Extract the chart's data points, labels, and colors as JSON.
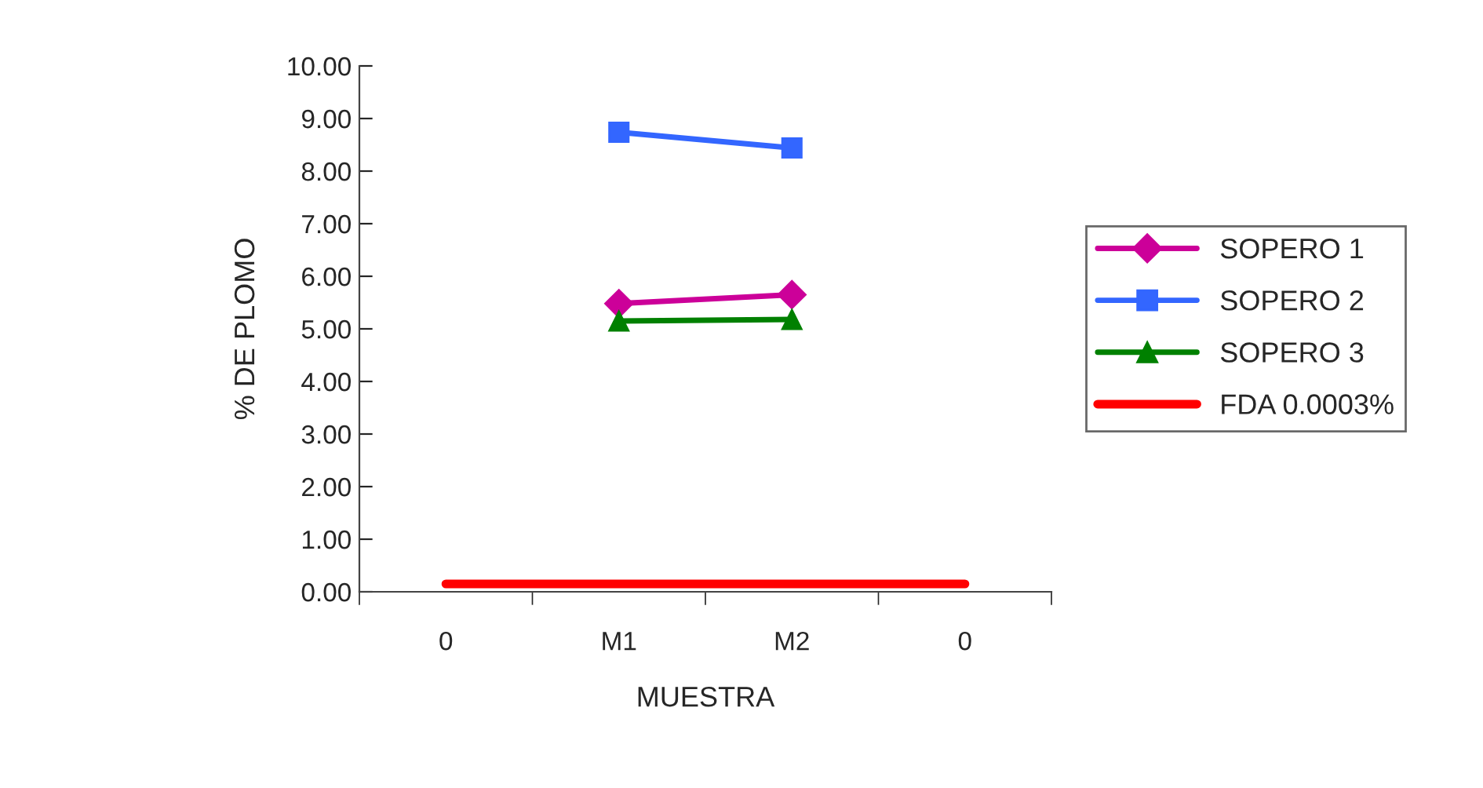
{
  "chart_data": {
    "type": "line",
    "xlabel": "MUESTRA",
    "ylabel": "% DE PLOMO",
    "categories": [
      "0",
      "M1",
      "M2",
      "0"
    ],
    "series": [
      {
        "name": "SOPERO 1",
        "color": "#cc0099",
        "marker": "diamond",
        "values": [
          null,
          5.48,
          5.65,
          null
        ]
      },
      {
        "name": "SOPERO 2",
        "color": "#3366ff",
        "marker": "square",
        "values": [
          null,
          8.74,
          8.44,
          null
        ]
      },
      {
        "name": "SOPERO 3",
        "color": "#008000",
        "marker": "triangle",
        "values": [
          null,
          5.15,
          5.18,
          null
        ]
      },
      {
        "name": "FDA 0.0003%",
        "color": "#ff0000",
        "marker": "none",
        "values": [
          0.15,
          0.15,
          0.15,
          0.15
        ]
      }
    ],
    "ylim": [
      0,
      10
    ],
    "yticks": [
      {
        "value": 0,
        "label": "0.00"
      },
      {
        "value": 1,
        "label": "1.00"
      },
      {
        "value": 2,
        "label": "2.00"
      },
      {
        "value": 3,
        "label": "3.00"
      },
      {
        "value": 4,
        "label": "4.00"
      },
      {
        "value": 5,
        "label": "5.00"
      },
      {
        "value": 6,
        "label": "6.00"
      },
      {
        "value": 7,
        "label": "7.00"
      },
      {
        "value": 8,
        "label": "8.00"
      },
      {
        "value": 9,
        "label": "9.00"
      },
      {
        "value": 10,
        "label": "10.00"
      }
    ],
    "grid": false,
    "legend": "right"
  }
}
